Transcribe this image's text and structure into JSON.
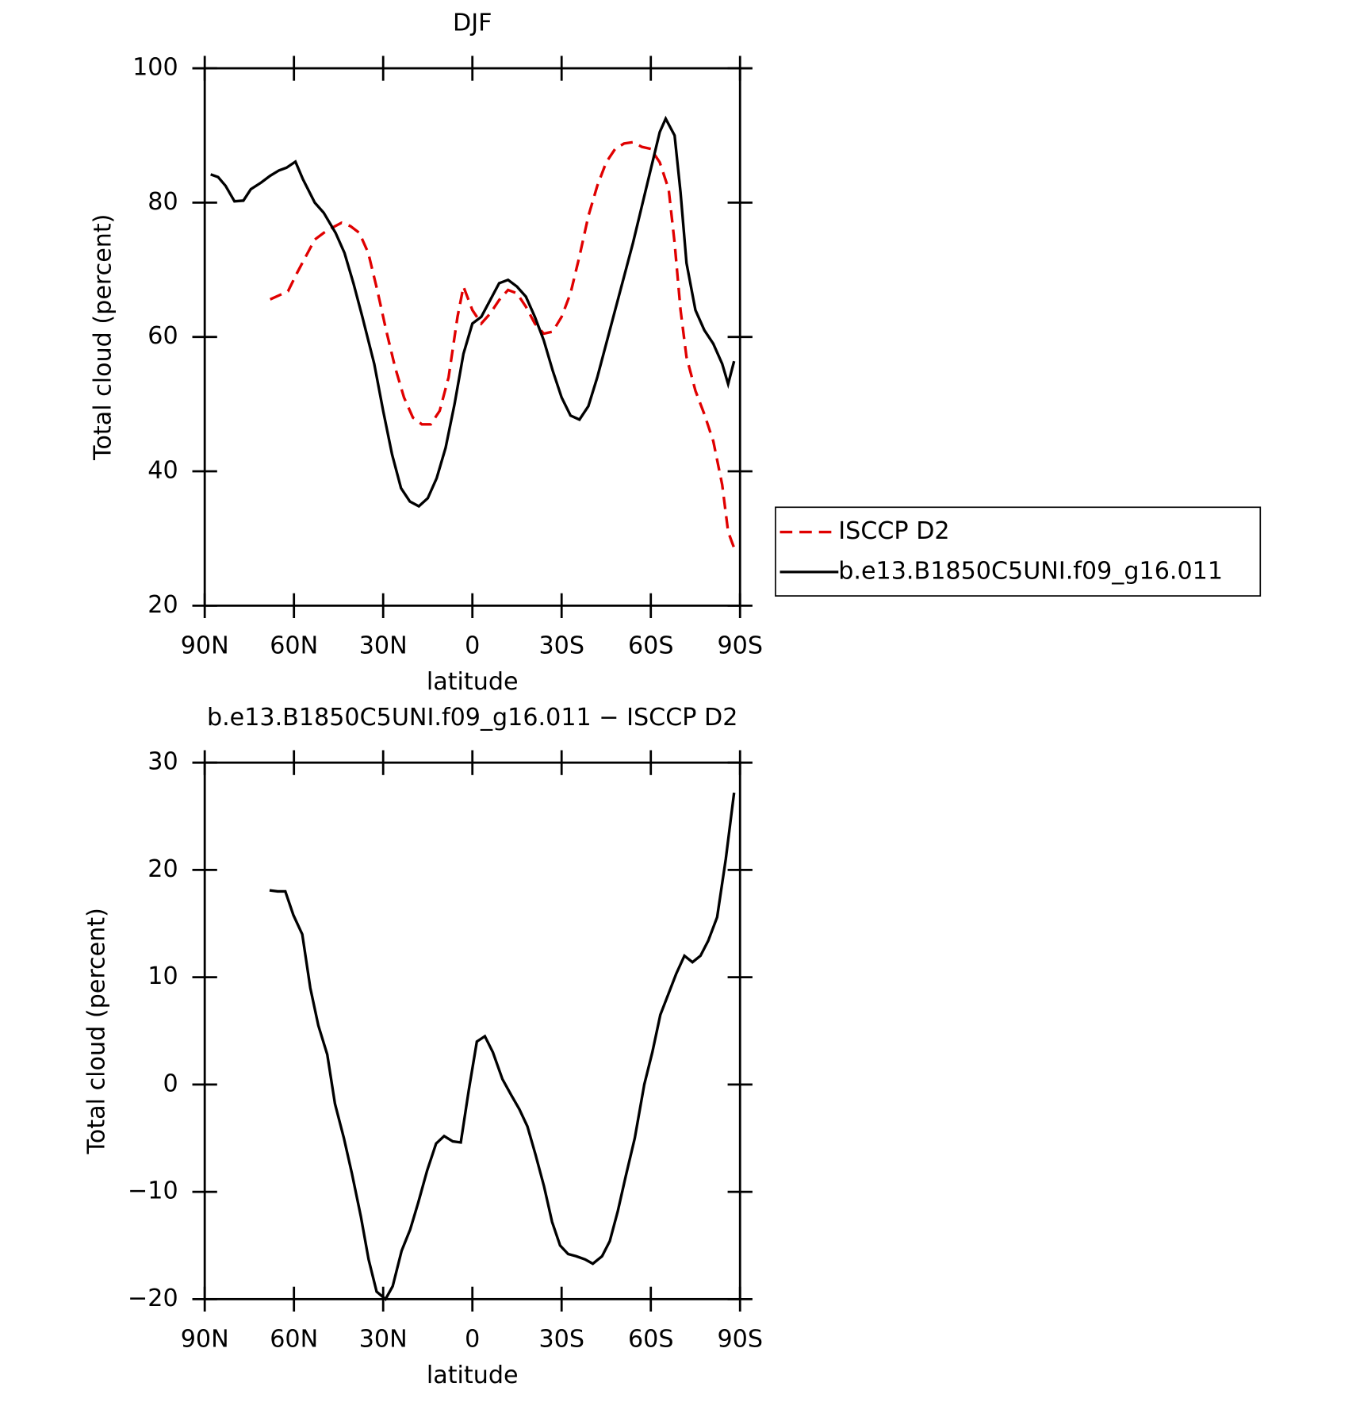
{
  "chart_data": [
    {
      "type": "line",
      "title": "DJF",
      "xlabel": "latitude",
      "ylabel": "Total cloud (percent)",
      "xlim": [
        90,
        -90
      ],
      "xticks": [
        {
          "value": 90,
          "label": "90N"
        },
        {
          "value": 60,
          "label": "60N"
        },
        {
          "value": 30,
          "label": "30N"
        },
        0,
        {
          "value": -30,
          "label": "30S"
        },
        {
          "value": -60,
          "label": "60S"
        },
        {
          "value": -90,
          "label": "90S"
        }
      ],
      "ylim": [
        20,
        100
      ],
      "yticks": [
        20,
        40,
        60,
        80,
        100
      ],
      "legend": "outside-right",
      "series": [
        {
          "name": "ISCCP D2",
          "color": "#e00000",
          "linestyle": "dashed",
          "x": [
            68,
            65,
            62,
            59,
            56,
            53,
            50,
            47,
            44,
            41,
            38,
            35,
            32,
            29,
            26,
            23,
            20,
            17,
            14,
            11,
            8,
            5,
            3,
            0,
            -3,
            -6,
            -9,
            -12,
            -15,
            -18,
            -21,
            -24,
            -27,
            -30,
            -33,
            -36,
            -39,
            -42,
            -45,
            -48,
            -51,
            -54,
            -57,
            -60,
            -63,
            -66,
            -68,
            -70,
            -72,
            -75,
            -78,
            -81,
            -84,
            -86,
            -88
          ],
          "values": [
            65.6,
            66.2,
            66.8,
            69.5,
            72,
            74.5,
            75.5,
            76.3,
            77,
            76.5,
            75.5,
            72.5,
            67,
            61,
            55.5,
            51,
            48,
            47,
            47,
            49,
            54,
            63,
            67.5,
            64,
            62,
            63.5,
            65.5,
            67,
            66.5,
            64.5,
            62,
            60.5,
            60.8,
            63,
            66.5,
            72,
            78,
            82.5,
            86,
            88,
            88.8,
            89,
            88.3,
            88,
            86,
            82,
            74,
            64,
            57,
            52,
            48.5,
            44.5,
            38,
            31,
            28.6
          ]
        },
        {
          "name": "b.e13.B1850C5UNI.f09_g16.011",
          "color": "#000000",
          "linestyle": "solid",
          "x": [
            88,
            85.5,
            83,
            80,
            77,
            74.5,
            71,
            68,
            65,
            62.5,
            59.5,
            57,
            53,
            50,
            46,
            43,
            40,
            37,
            33,
            30,
            27,
            24,
            21,
            18,
            15,
            12,
            9,
            6,
            3,
            0,
            -3,
            -6,
            -9,
            -12,
            -15,
            -18,
            -21,
            -24,
            -27,
            -30,
            -33,
            -36,
            -39,
            -42,
            -45,
            -48,
            -51,
            -54,
            -57,
            -60,
            -63,
            -65,
            -68,
            -70,
            -72,
            -75,
            -78,
            -81,
            -84,
            -86,
            -88
          ],
          "values": [
            84.2,
            83.8,
            82.5,
            80.2,
            80.3,
            82,
            83,
            84,
            84.8,
            85.2,
            86.1,
            83.5,
            80,
            78.5,
            75.5,
            72.5,
            68,
            63,
            56,
            49,
            42.5,
            37.5,
            35.5,
            34.8,
            36,
            39,
            43.5,
            50,
            57.5,
            62,
            63,
            65.5,
            68,
            68.5,
            67.5,
            66,
            63,
            59.5,
            55,
            51,
            48.3,
            47.7,
            49.7,
            54,
            59,
            64,
            69,
            74,
            79.5,
            85,
            90.5,
            92.5,
            90,
            81.5,
            71,
            64,
            61,
            59,
            56,
            53,
            56.4
          ]
        }
      ]
    },
    {
      "type": "line",
      "title": "b.e13.B1850C5UNI.f09_g16.011 − ISCCP D2",
      "xlabel": "latitude",
      "ylabel": "Total cloud (percent)",
      "xlim": [
        90,
        -90
      ],
      "xticks": [
        {
          "value": 90,
          "label": "90N"
        },
        {
          "value": 60,
          "label": "60N"
        },
        {
          "value": 30,
          "label": "30N"
        },
        0,
        {
          "value": -30,
          "label": "30S"
        },
        {
          "value": -60,
          "label": "60S"
        },
        {
          "value": -90,
          "label": "90S"
        }
      ],
      "ylim": [
        -20,
        30
      ],
      "yticks": [
        {
          "value": -20,
          "label": "−20"
        },
        {
          "value": -10,
          "label": "−10"
        },
        0,
        10,
        20,
        30
      ],
      "series": [
        {
          "color": "#000000",
          "linestyle": "solid",
          "x": [
            68.2,
            65.5,
            62.9,
            60.2,
            57.2,
            54.5,
            51.8,
            48.8,
            46.2,
            43.2,
            40.5,
            37.5,
            34.9,
            32.2,
            29.2,
            26.8,
            23.8,
            20.9,
            18.2,
            15.2,
            12.2,
            9.5,
            6.6,
            3.9,
            1.2,
            -1.5,
            -4.2,
            -6.9,
            -10.1,
            -13.1,
            -15.8,
            -18.5,
            -21.2,
            -24.1,
            -26.8,
            -29.5,
            -32.2,
            -34.9,
            -37.9,
            -40.5,
            -43.6,
            -46.2,
            -48.9,
            -51.6,
            -54.6,
            -57.8,
            -60.5,
            -63.2,
            -66,
            -68.5,
            -71.3,
            -74,
            -76.7,
            -79.3,
            -82.3,
            -85.2,
            -88
          ],
          "values": [
            18.1,
            18,
            18,
            15.8,
            14,
            9,
            5.5,
            2.8,
            -1.8,
            -5,
            -8.3,
            -12.3,
            -16.3,
            -19.3,
            -20,
            -18.8,
            -15.5,
            -13.5,
            -11,
            -8,
            -5.5,
            -4.8,
            -5.3,
            -5.4,
            -0.5,
            4,
            4.5,
            3,
            0.5,
            -1,
            -2.3,
            -3.9,
            -6.5,
            -9.5,
            -12.8,
            -15,
            -15.8,
            -16,
            -16.3,
            -16.7,
            -16,
            -14.6,
            -11.8,
            -8.5,
            -5,
            0,
            3,
            6.5,
            8.5,
            10.3,
            12,
            11.4,
            12,
            13.4,
            15.6,
            21,
            27.2
          ]
        }
      ]
    }
  ]
}
